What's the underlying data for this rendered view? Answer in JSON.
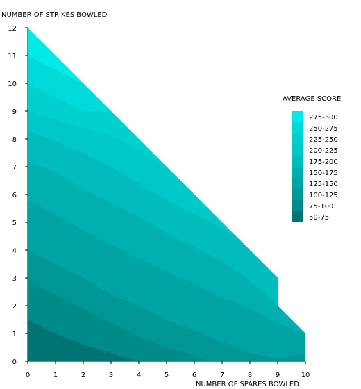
{
  "chart_data": {
    "type": "area",
    "title": "",
    "xlabel": "NUMBER OF SPARES BOWLED",
    "ylabel": "NUMBER OF STRIKES BOWLED",
    "xlim": [
      0,
      10
    ],
    "ylim": [
      0,
      12
    ],
    "x_ticks": [
      "0",
      "1",
      "2",
      "3",
      "4",
      "5",
      "6",
      "7",
      "8",
      "9",
      "10"
    ],
    "y_ticks": [
      "0",
      "1",
      "2",
      "3",
      "4",
      "5",
      "6",
      "7",
      "8",
      "9",
      "10",
      "11",
      "12"
    ],
    "grid": false,
    "legend_position": "right",
    "legend_title": "AVERAGE SCORE",
    "boundary": [
      [
        0,
        0
      ],
      [
        10,
        0
      ],
      [
        10,
        1
      ],
      [
        9,
        2
      ],
      [
        9,
        3
      ],
      [
        8,
        4
      ],
      [
        0,
        12
      ]
    ],
    "series": [
      {
        "name": "275-300",
        "color": "#00eaea",
        "polygon": [
          [
            0,
            12
          ],
          [
            0,
            11
          ],
          [
            2,
            10
          ],
          [
            3,
            9
          ],
          [
            0,
            12
          ]
        ]
      },
      {
        "name": "250-275",
        "color": "#00dada",
        "polygon": [
          [
            0,
            11
          ],
          [
            0,
            10
          ],
          [
            1,
            9.5
          ],
          [
            2,
            9
          ],
          [
            3,
            9
          ],
          [
            2,
            10
          ]
        ]
      },
      {
        "name": "225-250",
        "color": "#00d0d0",
        "polygon": [
          [
            0,
            10
          ],
          [
            0,
            9
          ],
          [
            1,
            8.7
          ],
          [
            2,
            8.4
          ],
          [
            3,
            8.1
          ],
          [
            4,
            7.6
          ],
          [
            5,
            7
          ],
          [
            6,
            6
          ],
          [
            4,
            8
          ],
          [
            3,
            9
          ],
          [
            2,
            9
          ],
          [
            1,
            9.5
          ]
        ]
      },
      {
        "name": "200-225",
        "color": "#00c8c8",
        "polygon": [
          [
            0,
            9
          ],
          [
            0,
            8.3
          ],
          [
            1,
            7.9
          ],
          [
            2,
            7.5
          ],
          [
            3,
            7
          ],
          [
            4,
            6.4
          ],
          [
            5,
            5.8
          ],
          [
            6,
            5.3
          ],
          [
            7,
            4.8
          ],
          [
            7.5,
            4.5
          ],
          [
            8,
            4
          ],
          [
            6,
            6
          ],
          [
            5,
            7
          ],
          [
            4,
            7.6
          ],
          [
            3,
            8.1
          ],
          [
            2,
            8.4
          ],
          [
            1,
            8.7
          ]
        ]
      },
      {
        "name": "175-200",
        "color": "#00bcbc",
        "polygon": [
          [
            0,
            8.3
          ],
          [
            0,
            7.2
          ],
          [
            1,
            6.8
          ],
          [
            2,
            6.2
          ],
          [
            3,
            5.7
          ],
          [
            4,
            5.2
          ],
          [
            5,
            4.6
          ],
          [
            6,
            4.1
          ],
          [
            7,
            3.6
          ],
          [
            8,
            2.9
          ],
          [
            9,
            2
          ],
          [
            9,
            3
          ],
          [
            8,
            4
          ],
          [
            7.5,
            4.5
          ],
          [
            7,
            4.8
          ],
          [
            6,
            5.3
          ],
          [
            5,
            5.8
          ],
          [
            4,
            6.4
          ],
          [
            3,
            7
          ],
          [
            2,
            7.5
          ],
          [
            1,
            7.9
          ]
        ]
      },
      {
        "name": "150-175",
        "color": "#00b0b0",
        "polygon": [
          [
            0,
            7.2
          ],
          [
            0,
            5.8
          ],
          [
            1,
            5.3
          ],
          [
            2,
            4.7
          ],
          [
            3,
            4.2
          ],
          [
            4,
            3.7
          ],
          [
            5,
            3.2
          ],
          [
            6,
            2.8
          ],
          [
            7,
            2.3
          ],
          [
            8,
            1.9
          ],
          [
            9,
            1.4
          ],
          [
            9.5,
            1.2
          ],
          [
            10,
            1
          ],
          [
            9,
            2
          ],
          [
            8,
            2.9
          ],
          [
            7,
            3.6
          ],
          [
            6,
            4.1
          ],
          [
            5,
            4.6
          ],
          [
            4,
            5.2
          ],
          [
            3,
            5.7
          ],
          [
            2,
            6.2
          ],
          [
            1,
            6.8
          ]
        ]
      },
      {
        "name": "125-150",
        "color": "#00a4a4",
        "polygon": [
          [
            0,
            5.8
          ],
          [
            0,
            4
          ],
          [
            1,
            3.5
          ],
          [
            2,
            3
          ],
          [
            3,
            2.4
          ],
          [
            4,
            2
          ],
          [
            5,
            1.5
          ],
          [
            6,
            1.1
          ],
          [
            7,
            0.7
          ],
          [
            8,
            0.3
          ],
          [
            9,
            0.1
          ],
          [
            10,
            0.3
          ],
          [
            10,
            1
          ],
          [
            9.5,
            1.2
          ],
          [
            9,
            1.4
          ],
          [
            8,
            1.9
          ],
          [
            7,
            2.3
          ],
          [
            6,
            2.8
          ],
          [
            5,
            3.2
          ],
          [
            4,
            3.7
          ],
          [
            3,
            4.2
          ],
          [
            2,
            4.7
          ],
          [
            1,
            5.3
          ]
        ]
      },
      {
        "name": "100-125",
        "color": "#009696",
        "polygon": [
          [
            0,
            4
          ],
          [
            0,
            2.9
          ],
          [
            1,
            2.4
          ],
          [
            2,
            1.9
          ],
          [
            3,
            1.4
          ],
          [
            4,
            0.9
          ],
          [
            5,
            0.5
          ],
          [
            6,
            0.2
          ],
          [
            6.5,
            0
          ],
          [
            10,
            0
          ],
          [
            10,
            0.3
          ],
          [
            9,
            0.1
          ],
          [
            8,
            0.3
          ],
          [
            7,
            0.7
          ],
          [
            6,
            1.1
          ],
          [
            5,
            1.5
          ],
          [
            4,
            2
          ],
          [
            3,
            2.4
          ],
          [
            2,
            3
          ],
          [
            1,
            3.5
          ]
        ]
      },
      {
        "name": "75-100",
        "color": "#008a8a",
        "polygon": [
          [
            0,
            2.9
          ],
          [
            0,
            1.5
          ],
          [
            1,
            1
          ],
          [
            2,
            0.6
          ],
          [
            3,
            0.3
          ],
          [
            4,
            0
          ],
          [
            6.5,
            0
          ],
          [
            6,
            0.2
          ],
          [
            5,
            0.5
          ],
          [
            4,
            0.9
          ],
          [
            3,
            1.4
          ],
          [
            2,
            1.9
          ],
          [
            1,
            2.4
          ]
        ]
      },
      {
        "name": "50-75",
        "color": "#007474",
        "polygon": [
          [
            0,
            1.5
          ],
          [
            0,
            0
          ],
          [
            2,
            0
          ],
          [
            1.5,
            0.3
          ],
          [
            1,
            0.6
          ],
          [
            0.5,
            1
          ]
        ]
      }
    ]
  }
}
